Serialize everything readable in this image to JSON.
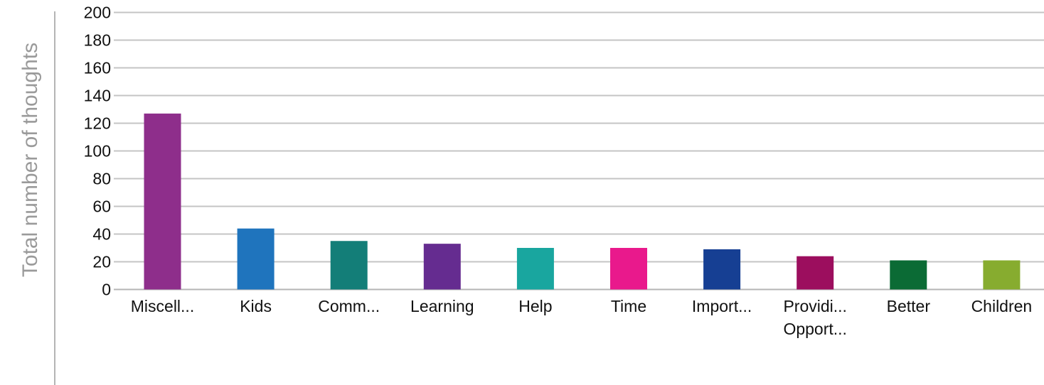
{
  "chart_data": {
    "type": "bar",
    "title": "",
    "xlabel": "",
    "ylabel": "Total number of thoughts",
    "ylim": [
      0,
      200
    ],
    "yticks": [
      0,
      20,
      40,
      60,
      80,
      100,
      120,
      140,
      160,
      180,
      200
    ],
    "grid": true,
    "categories": [
      [
        "Miscell..."
      ],
      [
        "Kids"
      ],
      [
        "Comm..."
      ],
      [
        "Learning"
      ],
      [
        "Help"
      ],
      [
        "Time"
      ],
      [
        "Import..."
      ],
      [
        "Providi...",
        "Opport..."
      ],
      [
        "Better"
      ],
      [
        "Children"
      ]
    ],
    "values": [
      127,
      44,
      35,
      33,
      30,
      30,
      29,
      24,
      21,
      21
    ],
    "colors": [
      "#8e2e8b",
      "#1f74bd",
      "#137e78",
      "#652c90",
      "#19a69f",
      "#e9198c",
      "#163f93",
      "#9c0e5e",
      "#0b6b35",
      "#87ac2f"
    ],
    "axis_color": "#b5b5b5",
    "grid_color": "#c4c4c4"
  }
}
